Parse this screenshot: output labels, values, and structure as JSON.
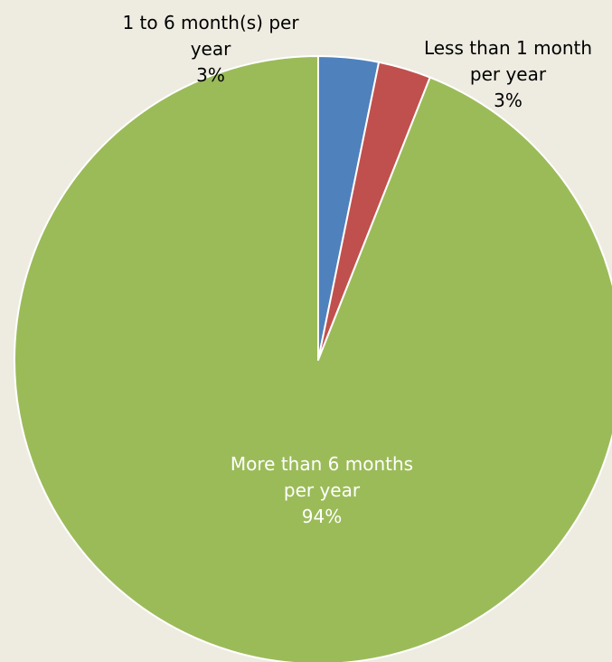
{
  "chart_data": {
    "type": "pie",
    "title": "",
    "start_angle_deg": 0,
    "direction": "clockwise",
    "slices": [
      {
        "lines": [
          "1 to 6 month(s) per",
          "year",
          "3%"
        ],
        "value": 3.2,
        "color": "#4F81BD",
        "label_color": "#000000"
      },
      {
        "lines": [
          "Less than 1 month",
          "per year",
          "3%"
        ],
        "value": 2.8,
        "color": "#C0504D",
        "label_color": "#000000"
      },
      {
        "lines": [
          "More than 6 months",
          "per year",
          "94%"
        ],
        "value": 94,
        "color": "#9BBB59",
        "label_color": "#FFFFFF"
      }
    ]
  }
}
